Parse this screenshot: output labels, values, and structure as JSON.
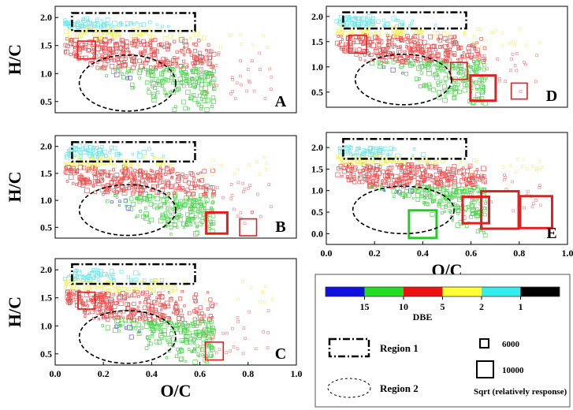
{
  "chart_data": [
    {
      "id": "A",
      "type": "scatter",
      "panel_label": "A",
      "ylabel": "H/C",
      "xlabel": "",
      "xlim": [
        0,
        1.0
      ],
      "ylim": [
        0.3,
        2.2
      ],
      "yticks": [
        "0.5",
        "1.0",
        "1.5",
        "2.0"
      ],
      "xticks": [],
      "regions": {
        "region1": {
          "x": [
            0.07,
            0.58
          ],
          "y": [
            1.76,
            2.08
          ]
        },
        "region2": {
          "cx": 0.3,
          "cy": 0.83,
          "rx": 0.2,
          "ry": 0.5
        }
      },
      "highlight_points": [
        {
          "x": 0.13,
          "y": 1.42,
          "size": 5000,
          "dbe_color": "#e02020"
        }
      ]
    },
    {
      "id": "D",
      "type": "scatter",
      "panel_label": "D",
      "ylabel": "",
      "xlabel": "",
      "xlim": [
        0,
        1.0
      ],
      "ylim": [
        0.2,
        2.2
      ],
      "yticks": [
        "0.5",
        "1.0",
        "1.5",
        "2.0"
      ],
      "xticks": [],
      "regions": {
        "region1": {
          "x": [
            0.07,
            0.58
          ],
          "y": [
            1.76,
            2.08
          ]
        },
        "region2": {
          "cx": 0.32,
          "cy": 0.75,
          "rx": 0.2,
          "ry": 0.5
        }
      },
      "highlight_points": [
        {
          "x": 0.13,
          "y": 1.45,
          "size": 5000,
          "dbe_color": "#e02020"
        },
        {
          "x": 0.55,
          "y": 0.92,
          "size": 4500,
          "dbe_color": "#e02020"
        },
        {
          "x": 0.65,
          "y": 0.58,
          "size": 10000,
          "dbe_color": "#e02020"
        },
        {
          "x": 0.8,
          "y": 0.52,
          "size": 4000,
          "dbe_color": "#e02020"
        }
      ]
    },
    {
      "id": "B",
      "type": "scatter",
      "panel_label": "B",
      "ylabel": "H/C",
      "xlabel": "",
      "xlim": [
        0,
        1.0
      ],
      "ylim": [
        0.3,
        2.2
      ],
      "yticks": [
        "0.5",
        "1.0",
        "1.5",
        "2.0"
      ],
      "xticks": [],
      "regions": {
        "region1": {
          "x": [
            0.07,
            0.58
          ],
          "y": [
            1.72,
            2.08
          ]
        },
        "region2": {
          "cx": 0.3,
          "cy": 0.82,
          "rx": 0.2,
          "ry": 0.47
        }
      },
      "highlight_points": [
        {
          "x": 0.67,
          "y": 0.58,
          "size": 7000,
          "dbe_color": "#e02020"
        },
        {
          "x": 0.8,
          "y": 0.5,
          "size": 4500,
          "dbe_color": "#e02020"
        }
      ]
    },
    {
      "id": "E",
      "type": "scatter",
      "panel_label": "E",
      "ylabel": "",
      "xlabel": "O/C",
      "xlim": [
        0,
        1.0
      ],
      "ylim": [
        -0.25,
        2.35
      ],
      "yticks": [
        "0.0",
        "0.5",
        "1.0",
        "1.5",
        "2.0"
      ],
      "xticks": [
        "0.0",
        "0.2",
        "0.4",
        "0.6",
        "0.8",
        "1.0"
      ],
      "regions": {
        "region1": {
          "x": [
            0.07,
            0.58
          ],
          "y": [
            1.74,
            2.2
          ]
        },
        "region2": {
          "cx": 0.32,
          "cy": 0.55,
          "rx": 0.21,
          "ry": 0.55
        }
      },
      "highlight_points": [
        {
          "x": 0.4,
          "y": 0.22,
          "size": 12000,
          "dbe_color": "#22cc22"
        },
        {
          "x": 0.62,
          "y": 0.55,
          "size": 11000,
          "dbe_color": "#e02020"
        },
        {
          "x": 0.72,
          "y": 0.55,
          "size": 22000,
          "dbe_color": "#e02020"
        },
        {
          "x": 0.87,
          "y": 0.5,
          "size": 16000,
          "dbe_color": "#e02020"
        }
      ]
    },
    {
      "id": "C",
      "type": "scatter",
      "panel_label": "C",
      "ylabel": "H/C",
      "xlabel": "O/C",
      "xlim": [
        0,
        1.0
      ],
      "ylim": [
        0.3,
        2.2
      ],
      "yticks": [
        "0.5",
        "1.0",
        "1.5",
        "2.0"
      ],
      "xticks": [
        "0.0",
        "0.2",
        "0.4",
        "0.6",
        "0.8",
        "1.0"
      ],
      "regions": {
        "region1": {
          "x": [
            0.07,
            0.58
          ],
          "y": [
            1.75,
            2.1
          ]
        },
        "region2": {
          "cx": 0.3,
          "cy": 0.8,
          "rx": 0.2,
          "ry": 0.47
        }
      },
      "highlight_points": [
        {
          "x": 0.13,
          "y": 1.45,
          "size": 4500,
          "dbe_color": "#e02020"
        },
        {
          "x": 0.66,
          "y": 0.55,
          "size": 5000,
          "dbe_color": "#e02020"
        }
      ]
    }
  ],
  "legend": {
    "dbe_colors": [
      "#1010e0",
      "#22dd22",
      "#ee1111",
      "#ffff33",
      "#33eeee",
      "#000000"
    ],
    "dbe_tick_labels": [
      "15",
      "10",
      "5",
      "2",
      "1"
    ],
    "dbe_title": "DBE",
    "region1_label": "Region 1",
    "region2_label": "Region 2",
    "size_labels": [
      "6000",
      "10000"
    ],
    "size_title": "Sqrt (relatively response)"
  }
}
